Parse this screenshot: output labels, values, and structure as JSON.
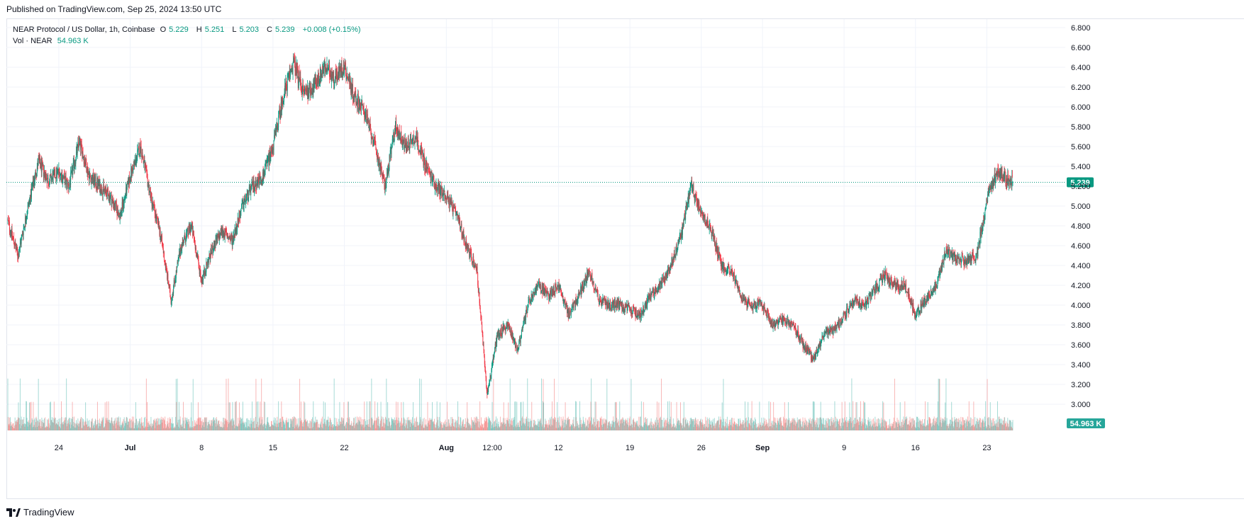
{
  "published": "Published on TradingView.com, Sep 25, 2024 13:50 UTC",
  "legend": {
    "title": "NEAR Protocol / US Dollar, 1h, Coinbase",
    "o_label": "O",
    "o_value": "5.229",
    "h_label": "H",
    "h_value": "5.251",
    "l_label": "L",
    "l_value": "5.203",
    "c_label": "C",
    "c_value": "5.239",
    "change": "+0.008 (+0.15%)",
    "vol_label": "Vol · NEAR",
    "vol_value": "54.963 K"
  },
  "footer": {
    "brand": "TradingView"
  },
  "colors": {
    "up": "#089981",
    "down": "#f23645",
    "vol_up": "#26a69a",
    "vol_down": "#ef5350",
    "grid": "#f0f3fa",
    "axis_text": "#131722"
  },
  "chart_data": {
    "type": "candlestick",
    "symbol": "NEAR Protocol / US Dollar",
    "interval": "1h",
    "exchange": "Coinbase",
    "y_ticks": [
      "6.800",
      "6.600",
      "6.400",
      "6.200",
      "6.000",
      "5.800",
      "5.600",
      "5.400",
      "5.200",
      "5.000",
      "4.800",
      "4.600",
      "4.400",
      "4.200",
      "4.000",
      "3.800",
      "3.600",
      "3.400",
      "3.200",
      "3.000"
    ],
    "ylim": [
      2.8,
      6.9
    ],
    "x_ticks": [
      "24",
      "Jul",
      "8",
      "15",
      "22",
      "Aug",
      "12:00",
      "12",
      "19",
      "26",
      "Sep",
      "9",
      "16",
      "23"
    ],
    "x_range": [
      "2024-06-19",
      "2024-09-25 13:00"
    ],
    "last_price": "5.239",
    "last_volume": "54.963 K",
    "price_path": [
      [
        "2024-06-19",
        4.85
      ],
      [
        "2024-06-20",
        4.5
      ],
      [
        "2024-06-21",
        5.0
      ],
      [
        "2024-06-22",
        5.45
      ],
      [
        "2024-06-23",
        5.25
      ],
      [
        "2024-06-24",
        5.35
      ],
      [
        "2024-06-25",
        5.2
      ],
      [
        "2024-06-26",
        5.65
      ],
      [
        "2024-06-27",
        5.3
      ],
      [
        "2024-06-28",
        5.2
      ],
      [
        "2024-06-29",
        5.1
      ],
      [
        "2024-06-30",
        4.9
      ],
      [
        "2024-07-01",
        5.3
      ],
      [
        "2024-07-02",
        5.6
      ],
      [
        "2024-07-03",
        5.1
      ],
      [
        "2024-07-04",
        4.7
      ],
      [
        "2024-07-05",
        4.05
      ],
      [
        "2024-07-06",
        4.6
      ],
      [
        "2024-07-07",
        4.8
      ],
      [
        "2024-07-08",
        4.25
      ],
      [
        "2024-07-09",
        4.55
      ],
      [
        "2024-07-10",
        4.75
      ],
      [
        "2024-07-11",
        4.65
      ],
      [
        "2024-07-12",
        5.0
      ],
      [
        "2024-07-13",
        5.2
      ],
      [
        "2024-07-14",
        5.3
      ],
      [
        "2024-07-15",
        5.6
      ],
      [
        "2024-07-16",
        6.1
      ],
      [
        "2024-07-17",
        6.45
      ],
      [
        "2024-07-18",
        6.15
      ],
      [
        "2024-07-19",
        6.2
      ],
      [
        "2024-07-20",
        6.4
      ],
      [
        "2024-07-21",
        6.3
      ],
      [
        "2024-07-22",
        6.4
      ],
      [
        "2024-07-23",
        6.1
      ],
      [
        "2024-07-24",
        5.95
      ],
      [
        "2024-07-25",
        5.6
      ],
      [
        "2024-07-26",
        5.2
      ],
      [
        "2024-07-27",
        5.8
      ],
      [
        "2024-07-28",
        5.6
      ],
      [
        "2024-07-29",
        5.7
      ],
      [
        "2024-07-30",
        5.4
      ],
      [
        "2024-07-31",
        5.2
      ],
      [
        "2024-08-01",
        5.1
      ],
      [
        "2024-08-02",
        4.9
      ],
      [
        "2024-08-03",
        4.6
      ],
      [
        "2024-08-04",
        4.35
      ],
      [
        "2024-08-05",
        3.1
      ],
      [
        "2024-08-06",
        3.7
      ],
      [
        "2024-08-07",
        3.8
      ],
      [
        "2024-08-08",
        3.55
      ],
      [
        "2024-08-09",
        4.0
      ],
      [
        "2024-08-10",
        4.2
      ],
      [
        "2024-08-11",
        4.1
      ],
      [
        "2024-08-12",
        4.2
      ],
      [
        "2024-08-13",
        3.9
      ],
      [
        "2024-08-14",
        4.1
      ],
      [
        "2024-08-15",
        4.35
      ],
      [
        "2024-08-16",
        4.05
      ],
      [
        "2024-08-17",
        4.0
      ],
      [
        "2024-08-18",
        4.0
      ],
      [
        "2024-08-19",
        3.95
      ],
      [
        "2024-08-20",
        3.9
      ],
      [
        "2024-08-21",
        4.1
      ],
      [
        "2024-08-22",
        4.2
      ],
      [
        "2024-08-23",
        4.4
      ],
      [
        "2024-08-24",
        4.7
      ],
      [
        "2024-08-25",
        5.2
      ],
      [
        "2024-08-26",
        4.95
      ],
      [
        "2024-08-27",
        4.75
      ],
      [
        "2024-08-28",
        4.4
      ],
      [
        "2024-08-29",
        4.35
      ],
      [
        "2024-08-30",
        4.05
      ],
      [
        "2024-08-31",
        4.0
      ],
      [
        "2024-09-01",
        4.0
      ],
      [
        "2024-09-02",
        3.8
      ],
      [
        "2024-09-03",
        3.85
      ],
      [
        "2024-09-04",
        3.8
      ],
      [
        "2024-09-05",
        3.6
      ],
      [
        "2024-09-06",
        3.45
      ],
      [
        "2024-09-07",
        3.7
      ],
      [
        "2024-09-08",
        3.75
      ],
      [
        "2024-09-09",
        3.9
      ],
      [
        "2024-09-10",
        4.05
      ],
      [
        "2024-09-11",
        4.0
      ],
      [
        "2024-09-12",
        4.15
      ],
      [
        "2024-09-13",
        4.3
      ],
      [
        "2024-09-14",
        4.2
      ],
      [
        "2024-09-15",
        4.2
      ],
      [
        "2024-09-16",
        3.9
      ],
      [
        "2024-09-17",
        4.05
      ],
      [
        "2024-09-18",
        4.2
      ],
      [
        "2024-09-19",
        4.55
      ],
      [
        "2024-09-20",
        4.45
      ],
      [
        "2024-09-21",
        4.45
      ],
      [
        "2024-09-22",
        4.5
      ],
      [
        "2024-09-23",
        5.05
      ],
      [
        "2024-09-24",
        5.35
      ],
      [
        "2024-09-25 13:00",
        5.24
      ]
    ]
  }
}
